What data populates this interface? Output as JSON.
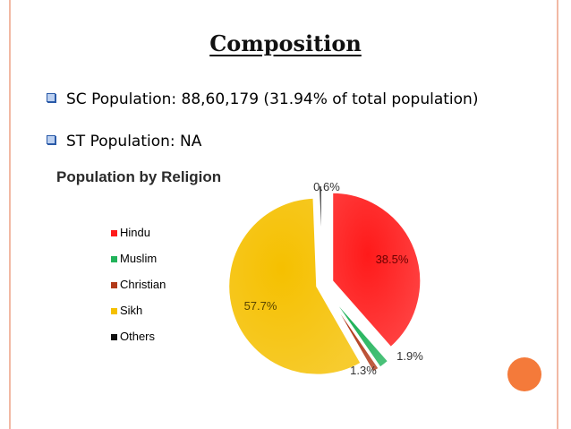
{
  "slide": {
    "title": "Composition",
    "bullets": [
      "SC Population: 88,60,179 (31.94% of total population)",
      "ST Population: NA"
    ]
  },
  "colors": {
    "frame_rail": "#f2b9a4",
    "deco_circle": "#f47a3a",
    "bullet_mark": "#2a5aa8"
  },
  "chart_data": {
    "type": "pie",
    "title": "Population by Religion",
    "legend_position": "left",
    "categories": [
      "Hindu",
      "Muslim",
      "Christian",
      "Sikh",
      "Others"
    ],
    "values": [
      38.5,
      1.9,
      1.3,
      57.7,
      0.6
    ],
    "data_labels": [
      "38.5%",
      "1.9%",
      "1.3%",
      "57.7%",
      "0.6%"
    ],
    "colors": [
      "#ff1a1a",
      "#21b35a",
      "#b23a1a",
      "#f5c000",
      "#111111"
    ],
    "exploded": true
  }
}
